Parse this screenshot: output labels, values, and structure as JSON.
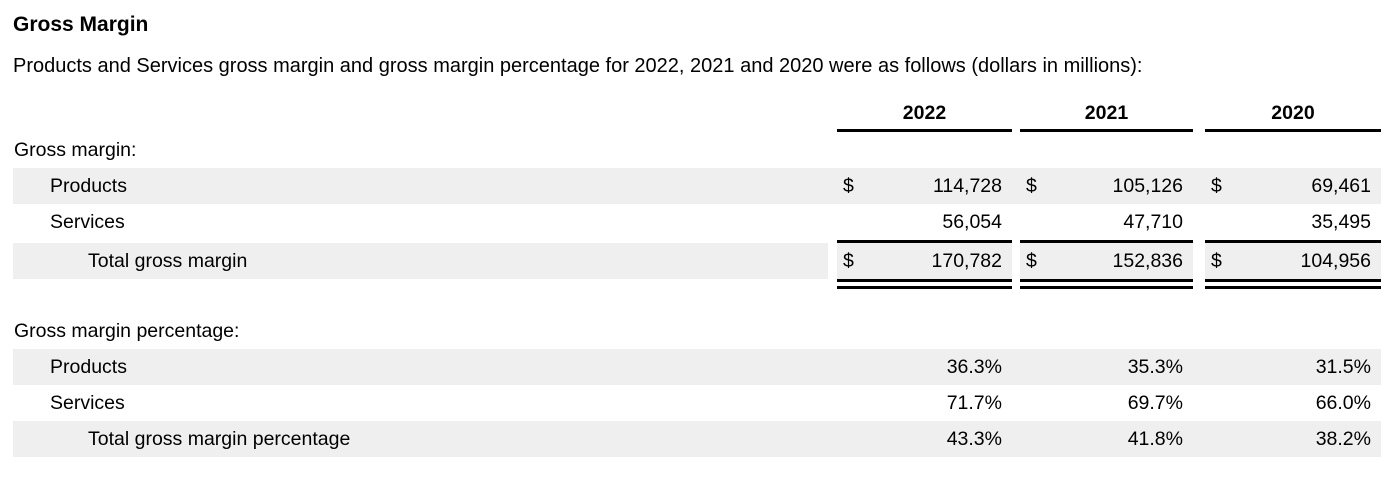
{
  "document": {
    "title": "Gross Margin",
    "subtitle": "Products and Services gross margin and gross margin percentage for 2022, 2021 and 2020 were as follows (dollars in millions):"
  },
  "table": {
    "column_headers": [
      "2022",
      "2021",
      "2020"
    ],
    "currency_symbol": "$",
    "sections": [
      {
        "heading": "Gross margin:",
        "rows": [
          {
            "label": "Products",
            "values": [
              "114,728",
              "105,126",
              "69,461"
            ]
          },
          {
            "label": "Services",
            "values": [
              "56,054",
              "47,710",
              "35,495"
            ]
          },
          {
            "label": "Total gross margin",
            "values": [
              "170,782",
              "152,836",
              "104,956"
            ]
          }
        ]
      },
      {
        "heading": "Gross margin percentage:",
        "rows": [
          {
            "label": "Products",
            "values": [
              "36.3%",
              "35.3%",
              "31.5%"
            ]
          },
          {
            "label": "Services",
            "values": [
              "71.7%",
              "69.7%",
              "66.0%"
            ]
          },
          {
            "label": "Total gross margin percentage",
            "values": [
              "43.3%",
              "41.8%",
              "38.2%"
            ]
          }
        ]
      }
    ]
  },
  "colors": {
    "stripe": "#efefef",
    "rule": "#000000",
    "text": "#000000",
    "background": "#ffffff"
  }
}
